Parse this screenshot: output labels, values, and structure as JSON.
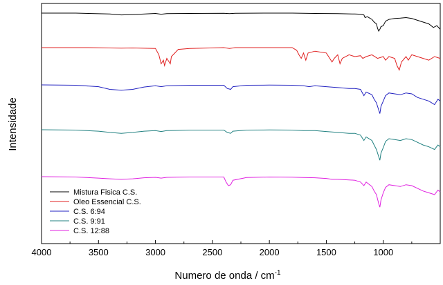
{
  "chart_data": {
    "type": "line",
    "xlabel": "Numero de onda / cm",
    "xlabel_sup": "-1",
    "ylabel": "Intensidade",
    "xlim": [
      4000,
      500
    ],
    "xticks": [
      "4000",
      "3500",
      "3000",
      "2500",
      "2000",
      "1500",
      "1000"
    ],
    "xtick_values": [
      4000,
      3500,
      3000,
      2500,
      2000,
      1500,
      1000
    ],
    "y_ticks_labeled": false,
    "grid": false,
    "legend_position": "bottom-left",
    "series": [
      {
        "name": "Mistura Fisica C.S.",
        "color": "#000000",
        "points": [
          [
            4000,
            0
          ],
          [
            3700,
            0
          ],
          [
            3400,
            -0.05
          ],
          [
            3300,
            -0.1
          ],
          [
            3200,
            -0.08
          ],
          [
            3000,
            -0.02
          ],
          [
            2950,
            -0.06
          ],
          [
            2900,
            -0.03
          ],
          [
            2700,
            -0.02
          ],
          [
            2400,
            -0.01
          ],
          [
            2350,
            -0.03
          ],
          [
            2300,
            -0.01
          ],
          [
            2000,
            0
          ],
          [
            1800,
            0
          ],
          [
            1700,
            -0.01
          ],
          [
            1600,
            -0.02
          ],
          [
            1400,
            -0.03
          ],
          [
            1250,
            -0.05
          ],
          [
            1200,
            -0.06
          ],
          [
            1170,
            -0.1
          ],
          [
            1160,
            -0.25
          ],
          [
            1140,
            -0.2
          ],
          [
            1100,
            -0.35
          ],
          [
            1080,
            -0.5
          ],
          [
            1060,
            -0.6
          ],
          [
            1050,
            -0.85
          ],
          [
            1040,
            -1.0
          ],
          [
            1030,
            -0.9
          ],
          [
            1020,
            -0.75
          ],
          [
            1000,
            -0.7
          ],
          [
            980,
            -0.45
          ],
          [
            950,
            -0.35
          ],
          [
            900,
            -0.3
          ],
          [
            850,
            -0.28
          ],
          [
            800,
            -0.25
          ],
          [
            750,
            -0.3
          ],
          [
            700,
            -0.4
          ],
          [
            650,
            -0.5
          ],
          [
            600,
            -0.6
          ],
          [
            560,
            -0.8
          ],
          [
            530,
            -0.7
          ],
          [
            500,
            -0.9
          ]
        ]
      },
      {
        "name": "Oleo Essencial C.S.",
        "color": "#e02020",
        "points": [
          [
            4000,
            0
          ],
          [
            3600,
            0
          ],
          [
            3400,
            -0.02
          ],
          [
            3300,
            -0.03
          ],
          [
            3200,
            -0.02
          ],
          [
            3000,
            -0.05
          ],
          [
            2970,
            -0.4
          ],
          [
            2950,
            -0.9
          ],
          [
            2930,
            -0.7
          ],
          [
            2920,
            -1.0
          ],
          [
            2900,
            -0.6
          ],
          [
            2870,
            -0.9
          ],
          [
            2860,
            -0.5
          ],
          [
            2800,
            -0.1
          ],
          [
            2700,
            -0.05
          ],
          [
            2400,
            0
          ],
          [
            2350,
            -0.05
          ],
          [
            2300,
            0
          ],
          [
            2000,
            0
          ],
          [
            1800,
            0
          ],
          [
            1760,
            -0.15
          ],
          [
            1740,
            -0.4
          ],
          [
            1720,
            -0.6
          ],
          [
            1700,
            -0.3
          ],
          [
            1680,
            -0.7
          ],
          [
            1660,
            -0.3
          ],
          [
            1600,
            -0.2
          ],
          [
            1500,
            -0.3
          ],
          [
            1450,
            -0.8
          ],
          [
            1430,
            -0.6
          ],
          [
            1400,
            -0.4
          ],
          [
            1380,
            -0.9
          ],
          [
            1360,
            -0.6
          ],
          [
            1300,
            -0.4
          ],
          [
            1250,
            -0.5
          ],
          [
            1200,
            -0.45
          ],
          [
            1180,
            -0.6
          ],
          [
            1150,
            -0.5
          ],
          [
            1100,
            -0.4
          ],
          [
            1050,
            -0.6
          ],
          [
            1000,
            -0.5
          ],
          [
            980,
            -0.7
          ],
          [
            950,
            -0.5
          ],
          [
            900,
            -0.6
          ],
          [
            880,
            -1.0
          ],
          [
            860,
            -1.25
          ],
          [
            840,
            -0.8
          ],
          [
            800,
            -0.5
          ],
          [
            780,
            -0.7
          ],
          [
            750,
            -0.4
          ],
          [
            700,
            -0.5
          ],
          [
            650,
            -0.6
          ],
          [
            600,
            -0.7
          ],
          [
            550,
            -0.5
          ],
          [
            500,
            -0.6
          ]
        ]
      },
      {
        "name": "C.S.   6:94",
        "color": "#2020c0",
        "points": [
          [
            4000,
            0
          ],
          [
            3700,
            -0.02
          ],
          [
            3500,
            -0.1
          ],
          [
            3400,
            -0.25
          ],
          [
            3300,
            -0.3
          ],
          [
            3200,
            -0.25
          ],
          [
            3100,
            -0.12
          ],
          [
            3000,
            -0.05
          ],
          [
            2950,
            -0.1
          ],
          [
            2900,
            -0.05
          ],
          [
            2700,
            -0.02
          ],
          [
            2400,
            -0.02
          ],
          [
            2370,
            -0.2
          ],
          [
            2340,
            -0.25
          ],
          [
            2320,
            -0.1
          ],
          [
            2200,
            -0.02
          ],
          [
            2000,
            -0.01
          ],
          [
            1800,
            -0.02
          ],
          [
            1700,
            -0.05
          ],
          [
            1650,
            -0.1
          ],
          [
            1600,
            -0.05
          ],
          [
            1500,
            -0.1
          ],
          [
            1400,
            -0.15
          ],
          [
            1300,
            -0.2
          ],
          [
            1250,
            -0.2
          ],
          [
            1200,
            -0.25
          ],
          [
            1170,
            -0.6
          ],
          [
            1150,
            -0.4
          ],
          [
            1100,
            -0.55
          ],
          [
            1080,
            -0.8
          ],
          [
            1060,
            -1.0
          ],
          [
            1040,
            -1.4
          ],
          [
            1030,
            -1.6
          ],
          [
            1020,
            -1.2
          ],
          [
            1000,
            -0.9
          ],
          [
            980,
            -0.6
          ],
          [
            950,
            -0.45
          ],
          [
            900,
            -0.5
          ],
          [
            850,
            -0.55
          ],
          [
            800,
            -0.45
          ],
          [
            750,
            -0.5
          ],
          [
            700,
            -0.7
          ],
          [
            650,
            -0.8
          ],
          [
            600,
            -0.9
          ],
          [
            550,
            -1.1
          ],
          [
            520,
            -0.8
          ],
          [
            500,
            -0.9
          ]
        ]
      },
      {
        "name": "C.S.   9:91",
        "color": "#208080",
        "points": [
          [
            4000,
            0
          ],
          [
            3700,
            -0.02
          ],
          [
            3500,
            -0.08
          ],
          [
            3400,
            -0.15
          ],
          [
            3300,
            -0.2
          ],
          [
            3200,
            -0.15
          ],
          [
            3100,
            -0.08
          ],
          [
            3000,
            -0.05
          ],
          [
            2950,
            -0.1
          ],
          [
            2900,
            -0.05
          ],
          [
            2700,
            -0.02
          ],
          [
            2400,
            -0.02
          ],
          [
            2370,
            -0.15
          ],
          [
            2340,
            -0.2
          ],
          [
            2320,
            -0.08
          ],
          [
            2200,
            -0.02
          ],
          [
            2000,
            -0.01
          ],
          [
            1800,
            -0.02
          ],
          [
            1700,
            -0.05
          ],
          [
            1600,
            -0.05
          ],
          [
            1500,
            -0.1
          ],
          [
            1400,
            -0.15
          ],
          [
            1300,
            -0.2
          ],
          [
            1250,
            -0.2
          ],
          [
            1200,
            -0.3
          ],
          [
            1170,
            -0.6
          ],
          [
            1150,
            -0.4
          ],
          [
            1100,
            -0.6
          ],
          [
            1080,
            -0.85
          ],
          [
            1060,
            -1.1
          ],
          [
            1040,
            -1.5
          ],
          [
            1030,
            -1.7
          ],
          [
            1020,
            -1.3
          ],
          [
            1000,
            -1.0
          ],
          [
            980,
            -0.65
          ],
          [
            950,
            -0.5
          ],
          [
            900,
            -0.55
          ],
          [
            850,
            -0.6
          ],
          [
            800,
            -0.5
          ],
          [
            750,
            -0.55
          ],
          [
            700,
            -0.7
          ],
          [
            650,
            -0.85
          ],
          [
            600,
            -0.95
          ],
          [
            550,
            -1.1
          ],
          [
            520,
            -0.85
          ],
          [
            500,
            -0.95
          ]
        ]
      },
      {
        "name": "C.S. 12:88",
        "color": "#e020e0",
        "points": [
          [
            4000,
            0
          ],
          [
            3700,
            -0.02
          ],
          [
            3500,
            -0.08
          ],
          [
            3400,
            -0.12
          ],
          [
            3300,
            -0.15
          ],
          [
            3200,
            -0.12
          ],
          [
            3100,
            -0.06
          ],
          [
            3000,
            -0.04
          ],
          [
            2950,
            -0.08
          ],
          [
            2900,
            -0.04
          ],
          [
            2700,
            -0.02
          ],
          [
            2400,
            -0.02
          ],
          [
            2380,
            -0.3
          ],
          [
            2360,
            -0.5
          ],
          [
            2340,
            -0.45
          ],
          [
            2320,
            -0.2
          ],
          [
            2200,
            -0.05
          ],
          [
            2000,
            -0.02
          ],
          [
            1800,
            -0.03
          ],
          [
            1700,
            -0.05
          ],
          [
            1600,
            -0.06
          ],
          [
            1500,
            -0.1
          ],
          [
            1450,
            -0.15
          ],
          [
            1400,
            -0.15
          ],
          [
            1300,
            -0.18
          ],
          [
            1250,
            -0.2
          ],
          [
            1200,
            -0.3
          ],
          [
            1170,
            -0.5
          ],
          [
            1150,
            -0.3
          ],
          [
            1100,
            -0.55
          ],
          [
            1080,
            -0.8
          ],
          [
            1060,
            -1.0
          ],
          [
            1040,
            -1.5
          ],
          [
            1030,
            -1.7
          ],
          [
            1020,
            -1.3
          ],
          [
            1000,
            -0.9
          ],
          [
            980,
            -0.6
          ],
          [
            950,
            -0.45
          ],
          [
            900,
            -0.5
          ],
          [
            850,
            -0.55
          ],
          [
            800,
            -0.45
          ],
          [
            750,
            -0.5
          ],
          [
            700,
            -0.65
          ],
          [
            650,
            -0.8
          ],
          [
            600,
            -0.9
          ],
          [
            550,
            -1.0
          ],
          [
            520,
            -0.75
          ],
          [
            500,
            -0.85
          ]
        ]
      }
    ]
  }
}
